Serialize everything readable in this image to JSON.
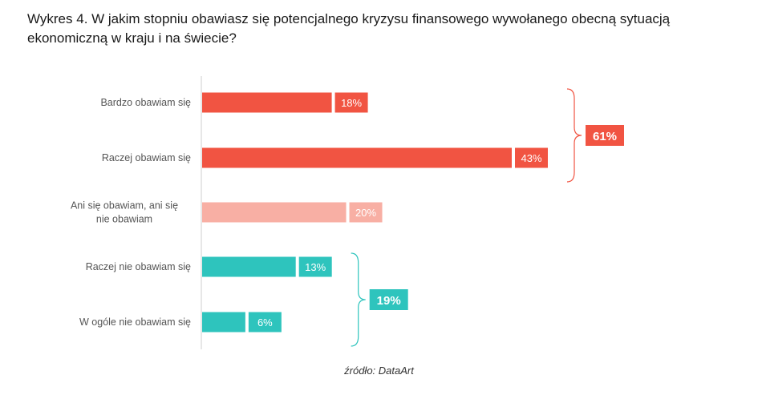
{
  "title": "Wykres 4. W jakim stopniu obawiasz się potencjalnego kryzysu finansowego wywołanego obecną sytuacją ekonomiczną w kraju i na świecie?",
  "source": "źródło: DataArt",
  "chart_data": {
    "type": "bar",
    "orientation": "horizontal",
    "categories": [
      "Bardzo obawiam się",
      "Raczej obawiam się",
      "Ani się obawiam, ani się nie obawiam",
      "Raczej nie obawiam się",
      "W ogóle nie obawiam się"
    ],
    "values": [
      18,
      43,
      20,
      13,
      6
    ],
    "value_labels": [
      "18%",
      "43%",
      "20%",
      "13%",
      "6%"
    ],
    "bar_colors": [
      "#f15442",
      "#f15442",
      "#f8afa4",
      "#2ec4bd",
      "#2ec4bd"
    ],
    "xlim": [
      0,
      45
    ],
    "grid": false,
    "groups": [
      {
        "label": "61%",
        "from": 0,
        "to": 1,
        "color": "#f15442"
      },
      {
        "label": "19%",
        "from": 3,
        "to": 4,
        "color": "#2ec4bd"
      }
    ]
  }
}
